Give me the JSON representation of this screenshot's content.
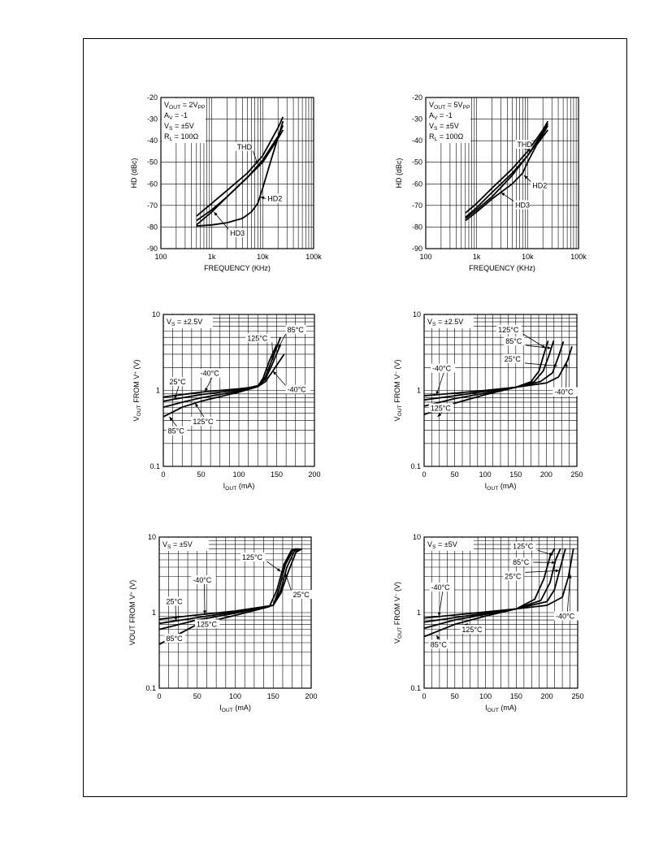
{
  "chart_data": [
    {
      "type": "line",
      "x_scale": "log",
      "y_scale": "linear",
      "xlim": [
        100,
        100000
      ],
      "ylim": [
        -90,
        -20
      ],
      "x_ticks": [
        {
          "v": 100,
          "label": "100"
        },
        {
          "v": 1000,
          "label": "1k"
        },
        {
          "v": 10000,
          "label": "10k"
        },
        {
          "v": 100000,
          "label": "100k"
        }
      ],
      "y_ticks": [
        {
          "v": -20,
          "label": "-20"
        },
        {
          "v": -30,
          "label": "-30"
        },
        {
          "v": -40,
          "label": "-40"
        },
        {
          "v": -50,
          "label": "-50"
        },
        {
          "v": -60,
          "label": "-60"
        },
        {
          "v": -70,
          "label": "-70"
        },
        {
          "v": -80,
          "label": "-80"
        },
        {
          "v": -90,
          "label": "-90"
        }
      ],
      "xlabel": "FREQUENCY (KHz)",
      "ylabel": "HD (dBc)",
      "conditions": [
        "V_OUT = 2V_PP",
        "A_V = -1",
        "V_S = ±5V",
        "R_L = 100Ω"
      ],
      "grid": true,
      "series": [
        {
          "name": "THD",
          "x": [
            500,
            1000,
            2000,
            5000,
            10000,
            20000,
            25000
          ],
          "y": [
            -75,
            -69,
            -63,
            -55,
            -47,
            -34,
            -29
          ]
        },
        {
          "x": [
            500,
            1000,
            2000,
            5000,
            10000,
            20000,
            25000
          ],
          "y": [
            -77,
            -72,
            -66,
            -57,
            -49,
            -38,
            -33
          ]
        },
        {
          "name": "HD2",
          "x": [
            500,
            1000,
            2000,
            4000,
            6000,
            8000,
            10000,
            15000,
            25000
          ],
          "y": [
            -79.5,
            -79,
            -78,
            -76,
            -73,
            -69,
            -62,
            -48,
            -31
          ]
        },
        {
          "name": "HD3",
          "x": [
            500,
            1000,
            2000,
            5000,
            10000,
            20000,
            25000
          ],
          "y": [
            -79,
            -73,
            -66,
            -57,
            -50,
            -39,
            -35
          ]
        }
      ],
      "annotations": [
        {
          "text": "THD",
          "x": 3000,
          "y": -44,
          "target_x": 8000,
          "target_y": -51
        },
        {
          "text": "HD2",
          "x": 12000,
          "y": -68,
          "target_x": 9000,
          "target_y": -66
        },
        {
          "text": "HD3",
          "x": 2200,
          "y": -84,
          "target_x": 1100,
          "target_y": -73
        }
      ]
    },
    {
      "type": "line",
      "x_scale": "log",
      "y_scale": "linear",
      "xlim": [
        100,
        100000
      ],
      "ylim": [
        -90,
        -20
      ],
      "x_ticks": [
        {
          "v": 100,
          "label": "100"
        },
        {
          "v": 1000,
          "label": "1k"
        },
        {
          "v": 10000,
          "label": "10k"
        },
        {
          "v": 100000,
          "label": "100k"
        }
      ],
      "y_ticks": [
        {
          "v": -20,
          "label": "-20"
        },
        {
          "v": -30,
          "label": "-30"
        },
        {
          "v": -40,
          "label": "-40"
        },
        {
          "v": -50,
          "label": "-50"
        },
        {
          "v": -60,
          "label": "-60"
        },
        {
          "v": -70,
          "label": "-70"
        },
        {
          "v": -80,
          "label": "-80"
        },
        {
          "v": -90,
          "label": "-90"
        }
      ],
      "xlabel": "FREQUENCY (KHz)",
      "ylabel": "HD (dBc)",
      "conditions": [
        "V_OUT = 5V_PP",
        "A_V = -1",
        "V_S = ±5V",
        "R_L = 100Ω"
      ],
      "grid": true,
      "series": [
        {
          "name": "THD",
          "x": [
            600,
            1000,
            2000,
            5000,
            10000,
            20000,
            25000
          ],
          "y": [
            -73.5,
            -69,
            -62,
            -53,
            -45,
            -35,
            -31
          ]
        },
        {
          "x": [
            600,
            1000,
            2000,
            5000,
            10000,
            20000,
            25000
          ],
          "y": [
            -75.5,
            -71,
            -64,
            -55,
            -47,
            -37,
            -33
          ]
        },
        {
          "name": "HD2",
          "x": [
            600,
            1000,
            2000,
            5000,
            8000,
            10000,
            15000,
            25000
          ],
          "y": [
            -77,
            -73,
            -67,
            -60,
            -55,
            -50,
            -42,
            -35
          ]
        },
        {
          "name": "HD3",
          "x": [
            600,
            1000,
            2000,
            5000,
            10000,
            20000,
            25000
          ],
          "y": [
            -76,
            -72,
            -66,
            -56,
            -47,
            -36,
            -32
          ]
        }
      ],
      "annotations": [
        {
          "text": "THD",
          "x": 6000,
          "y": -43,
          "target_x": 12000,
          "target_y": -45
        },
        {
          "text": "HD2",
          "x": 12000,
          "y": -62,
          "target_x": 8500,
          "target_y": -56
        },
        {
          "text": "HD3",
          "x": 5500,
          "y": -71,
          "target_x": 3000,
          "target_y": -64
        }
      ]
    },
    {
      "type": "line",
      "x_scale": "linear",
      "y_scale": "log",
      "xlim": [
        0,
        200
      ],
      "ylim": [
        0.1,
        10
      ],
      "x_ticks": [
        {
          "v": 0,
          "label": "0"
        },
        {
          "v": 50,
          "label": "50"
        },
        {
          "v": 100,
          "label": "100"
        },
        {
          "v": 150,
          "label": "150"
        },
        {
          "v": 200,
          "label": "200"
        }
      ],
      "y_ticks": [
        {
          "v": 0.1,
          "label": "0.1"
        },
        {
          "v": 1,
          "label": "1"
        },
        {
          "v": 10,
          "label": "10"
        }
      ],
      "xlabel": "I_OUT (mA)",
      "ylabel": "V_OUT FROM V^+ (V)",
      "conditions": [
        "V_S = ±2.5V"
      ],
      "grid": true,
      "series": [
        {
          "name": "-40°C",
          "x": [
            0,
            25,
            50,
            100,
            125,
            135,
            145,
            160
          ],
          "y": [
            0.82,
            0.88,
            0.95,
            1.05,
            1.12,
            1.3,
            1.8,
            3.0
          ]
        },
        {
          "name": "25°C",
          "x": [
            0,
            25,
            50,
            100,
            125,
            135,
            145,
            155
          ],
          "y": [
            0.72,
            0.8,
            0.88,
            1.02,
            1.15,
            1.4,
            2.3,
            4.0
          ]
        },
        {
          "name": "85°C",
          "x": [
            0,
            25,
            50,
            100,
            125,
            135,
            145,
            155
          ],
          "y": [
            0.6,
            0.7,
            0.8,
            0.98,
            1.15,
            1.5,
            2.7,
            5.0
          ]
        },
        {
          "name": "125°C",
          "x": [
            0,
            25,
            50,
            100,
            125,
            132,
            140,
            150
          ],
          "y": [
            0.45,
            0.6,
            0.72,
            0.95,
            1.12,
            1.45,
            2.4,
            4.0
          ]
        }
      ],
      "annotations": [
        {
          "text": "85°C",
          "x": 163,
          "y": 5.8,
          "target_x": 152,
          "target_y": 3.6
        },
        {
          "text": "125°C",
          "x": 110,
          "y": 4.5,
          "target_x": 145,
          "target_y": 2.5
        },
        {
          "text": "-40°C",
          "x": 163,
          "y": 0.95,
          "target_x": 145,
          "target_y": 1.8
        },
        {
          "text": "-40°C",
          "x": 48,
          "y": 1.55,
          "target_x": 55,
          "target_y": 0.96
        },
        {
          "text": "25°C",
          "x": 7,
          "y": 1.2,
          "target_x": 15,
          "target_y": 0.78
        },
        {
          "text": "125°C",
          "x": 38,
          "y": 0.36,
          "target_x": 42,
          "target_y": 0.68
        },
        {
          "text": "85°C",
          "x": 5,
          "y": 0.27,
          "target_x": 8,
          "target_y": 0.45
        }
      ]
    },
    {
      "type": "line",
      "x_scale": "linear",
      "y_scale": "log",
      "xlim": [
        0,
        250
      ],
      "ylim": [
        0.1,
        10
      ],
      "x_ticks": [
        {
          "v": 0,
          "label": "0"
        },
        {
          "v": 50,
          "label": "50"
        },
        {
          "v": 100,
          "label": "100"
        },
        {
          "v": 150,
          "label": "150"
        },
        {
          "v": 200,
          "label": "200"
        },
        {
          "v": 250,
          "label": "250"
        }
      ],
      "y_ticks": [
        {
          "v": 0.1,
          "label": "0.1"
        },
        {
          "v": 1,
          "label": "1"
        },
        {
          "v": 10,
          "label": "10"
        }
      ],
      "xlabel": "I_OUT (mA)",
      "ylabel": "V_OUT FROM V^- (V)",
      "conditions": [
        "V_S = ±2.5V"
      ],
      "grid": true,
      "series": [
        {
          "name": "-40°C",
          "x": [
            0,
            50,
            100,
            150,
            200,
            220,
            235,
            242
          ],
          "y": [
            0.85,
            0.92,
            1.0,
            1.1,
            1.25,
            1.5,
            2.5,
            3.8
          ]
        },
        {
          "name": "25°C",
          "x": [
            0,
            50,
            100,
            150,
            190,
            210,
            220,
            228
          ],
          "y": [
            0.75,
            0.85,
            0.97,
            1.1,
            1.3,
            1.7,
            2.8,
            4.4
          ]
        },
        {
          "name": "85°C",
          "x": [
            0,
            50,
            100,
            150,
            180,
            195,
            205,
            212
          ],
          "y": [
            0.62,
            0.78,
            0.92,
            1.1,
            1.3,
            1.8,
            3.0,
            4.5
          ]
        },
        {
          "name": "125°C",
          "x": [
            0,
            50,
            100,
            150,
            175,
            188,
            196,
            203
          ],
          "y": [
            0.48,
            0.68,
            0.88,
            1.1,
            1.3,
            1.8,
            3.0,
            4.5
          ]
        }
      ],
      "annotations": [
        {
          "text": "125°C",
          "x": 120,
          "y": 5.8,
          "target_x": 199,
          "target_y": 3.6
        },
        {
          "text": "85°C",
          "x": 132,
          "y": 4.1,
          "target_x": 208,
          "target_y": 3.6
        },
        {
          "text": "25°C",
          "x": 130,
          "y": 2.4,
          "target_x": 218,
          "target_y": 2.1
        },
        {
          "text": "-40°C",
          "x": 212,
          "y": 0.88,
          "target_x": 233,
          "target_y": 2.3
        },
        {
          "text": "-40°C",
          "x": 12,
          "y": 1.8,
          "target_x": 20,
          "target_y": 0.87
        },
        {
          "text": "125°C",
          "x": 9,
          "y": 0.54,
          "target_x": 22,
          "target_y": 0.45
        }
      ]
    },
    {
      "type": "line",
      "x_scale": "linear",
      "y_scale": "log",
      "xlim": [
        0,
        200
      ],
      "ylim": [
        0.1,
        10
      ],
      "x_ticks": [
        {
          "v": 0,
          "label": "0"
        },
        {
          "v": 50,
          "label": "50"
        },
        {
          "v": 100,
          "label": "100"
        },
        {
          "v": 150,
          "label": "150"
        },
        {
          "v": 200,
          "label": "200"
        }
      ],
      "y_ticks": [
        {
          "v": 0.1,
          "label": "0.1"
        },
        {
          "v": 1,
          "label": "1"
        },
        {
          "v": 10,
          "label": "10"
        }
      ],
      "xlabel": "I_OUT (mA)",
      "ylabel": "VOUT FROM V^+ (V)",
      "conditions": [
        "V_S = ±5V"
      ],
      "grid": true,
      "series": [
        {
          "name": "-40°C",
          "x": [
            0,
            50,
            100,
            150,
            160,
            170,
            180,
            188
          ],
          "y": [
            0.82,
            0.93,
            1.05,
            1.25,
            1.8,
            3.5,
            6.3,
            7.0
          ]
        },
        {
          "name": "25°C",
          "x": [
            0,
            50,
            100,
            150,
            160,
            168,
            178,
            185
          ],
          "y": [
            0.72,
            0.86,
            1.02,
            1.25,
            2.0,
            4.0,
            6.5,
            7.0
          ]
        },
        {
          "name": "85°C",
          "x": [
            0,
            50,
            100,
            150,
            158,
            166,
            176,
            183
          ],
          "y": [
            0.6,
            0.8,
            0.98,
            1.25,
            2.1,
            4.3,
            6.7,
            7.0
          ]
        },
        {
          "name": "125°C",
          "x": [
            0,
            50,
            100,
            145,
            155,
            164,
            174,
            181
          ],
          "y": [
            0.38,
            0.7,
            0.92,
            1.2,
            2.0,
            4.3,
            6.7,
            7.0
          ]
        }
      ],
      "annotations": [
        {
          "text": "125°C",
          "x": 108,
          "y": 5.0,
          "target_x": 160,
          "target_y": 3.5
        },
        {
          "text": "25°C",
          "x": 175,
          "y": 1.6,
          "target_x": 166,
          "target_y": 3.3
        },
        {
          "text": "-40°C",
          "x": 43,
          "y": 2.5,
          "target_x": 60,
          "target_y": 0.95
        },
        {
          "text": "25°C",
          "x": 8,
          "y": 1.3,
          "target_x": 22,
          "target_y": 0.78
        },
        {
          "text": "125°C",
          "x": 48,
          "y": 0.65,
          "target_x": 55,
          "target_y": 0.72
        },
        {
          "text": "85°C",
          "x": 8,
          "y": 0.42,
          "target_x": 14,
          "target_y": 0.5
        }
      ]
    },
    {
      "type": "line",
      "x_scale": "linear",
      "y_scale": "log",
      "xlim": [
        0,
        250
      ],
      "ylim": [
        0.1,
        10
      ],
      "x_ticks": [
        {
          "v": 0,
          "label": "0"
        },
        {
          "v": 50,
          "label": "50"
        },
        {
          "v": 100,
          "label": "100"
        },
        {
          "v": 150,
          "label": "150"
        },
        {
          "v": 200,
          "label": "200"
        },
        {
          "v": 250,
          "label": "250"
        }
      ],
      "y_ticks": [
        {
          "v": 0.1,
          "label": "0.1"
        },
        {
          "v": 1,
          "label": "1"
        },
        {
          "v": 10,
          "label": "10"
        }
      ],
      "xlabel": "I_OUT (mA)",
      "ylabel": "V_OUT FROM V^- (V)",
      "conditions": [
        "V_S = ±5V"
      ],
      "grid": true,
      "series": [
        {
          "name": "-40°C",
          "x": [
            0,
            50,
            100,
            150,
            200,
            225,
            235,
            243
          ],
          "y": [
            0.85,
            0.93,
            1.02,
            1.12,
            1.25,
            1.6,
            3.0,
            7.0
          ]
        },
        {
          "name": "25°C",
          "x": [
            0,
            50,
            100,
            150,
            200,
            212,
            222,
            230
          ],
          "y": [
            0.75,
            0.86,
            0.98,
            1.12,
            1.4,
            2.0,
            4.0,
            7.0
          ]
        },
        {
          "name": "85°C",
          "x": [
            0,
            50,
            100,
            150,
            190,
            205,
            214,
            222
          ],
          "y": [
            0.62,
            0.8,
            0.95,
            1.12,
            1.45,
            2.5,
            5.0,
            7.0
          ]
        },
        {
          "name": "125°C",
          "x": [
            0,
            50,
            100,
            150,
            180,
            195,
            205,
            212
          ],
          "y": [
            0.48,
            0.7,
            0.9,
            1.12,
            1.5,
            2.8,
            5.5,
            7.0
          ]
        }
      ],
      "annotations": [
        {
          "text": "125°C",
          "x": 143,
          "y": 7.0,
          "target_x": 210,
          "target_y": 5.8
        },
        {
          "text": "85°C",
          "x": 143,
          "y": 4.3,
          "target_x": 214,
          "target_y": 4.6
        },
        {
          "text": "25°C",
          "x": 130,
          "y": 2.8,
          "target_x": 220,
          "target_y": 3.6
        },
        {
          "text": "-40°C",
          "x": 213,
          "y": 0.83,
          "target_x": 238,
          "target_y": 3.2
        },
        {
          "text": "-40°C",
          "x": 10,
          "y": 2.0,
          "target_x": 24,
          "target_y": 0.9
        },
        {
          "text": "125°C",
          "x": 60,
          "y": 0.55,
          "target_x": 65,
          "target_y": 0.7
        },
        {
          "text": "85°C",
          "x": 9,
          "y": 0.35,
          "target_x": 20,
          "target_y": 0.5
        }
      ]
    }
  ]
}
